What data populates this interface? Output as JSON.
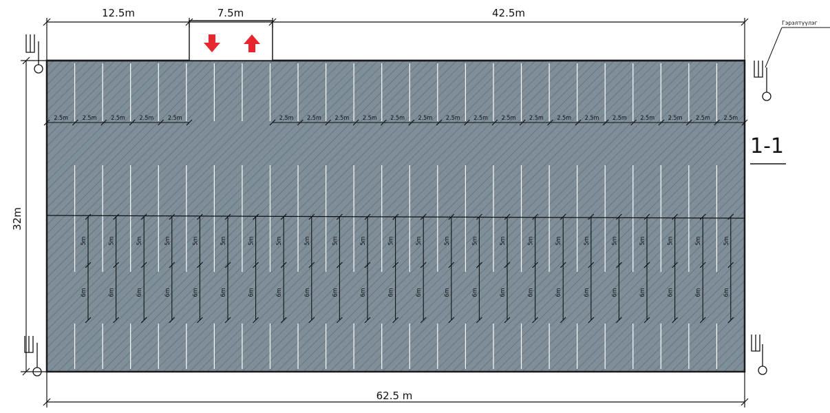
{
  "top_dimensions": {
    "left_segment": "12.5m",
    "entrance_width": "7.5m",
    "right_segment": "42.5m"
  },
  "overall_width_label": "62.5 m",
  "overall_height_label": "32m",
  "section_label": "1-1",
  "callout_label": "Гэрэлтүүлэг",
  "stall_width_label": "2.5m",
  "stall_length_upper_label": "5m",
  "stall_length_lower_label": "6m",
  "upper_row_left_stall_count": 5,
  "upper_row_right_stall_count": 17,
  "entrance_arrows": {
    "in": "down-arrow",
    "out": "up-arrow",
    "color": "#e8262d"
  },
  "colors": {
    "lot_fill": "#7f8f9a",
    "hatch": "#5f6e79",
    "lines": "#ffffff",
    "dims": "#111111"
  }
}
